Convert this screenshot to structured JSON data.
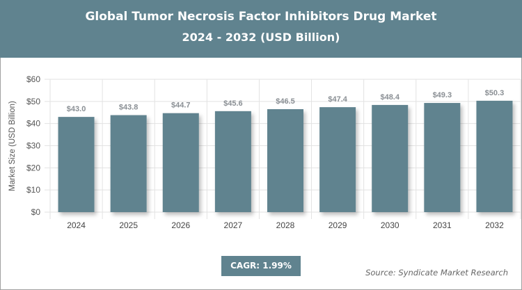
{
  "header": {
    "title": "Global Tumor Necrosis Factor Inhibitors Drug Market",
    "subtitle": "2024 - 2032 (USD Billion)"
  },
  "chart_data": {
    "type": "bar",
    "categories": [
      "2024",
      "2025",
      "2026",
      "2027",
      "2028",
      "2029",
      "2030",
      "2031",
      "2032"
    ],
    "values": [
      43.0,
      43.8,
      44.7,
      45.6,
      46.5,
      47.4,
      48.4,
      49.3,
      50.3
    ],
    "data_labels": [
      "$43.0",
      "$43.8",
      "$44.7",
      "$45.6",
      "$46.5",
      "$47.4",
      "$48.4",
      "$49.3",
      "$50.3"
    ],
    "ylabel": "Market Size (USD Billion)",
    "xlabel": "",
    "ylim": [
      0,
      60
    ],
    "yticks": [
      "$0",
      "$10",
      "$20",
      "$30",
      "$40",
      "$50",
      "$60"
    ],
    "grid": true,
    "bar_color": "#60838f"
  },
  "footer": {
    "cagr": "CAGR: 1.99%",
    "source": "Source: Syndicate Market Research"
  }
}
